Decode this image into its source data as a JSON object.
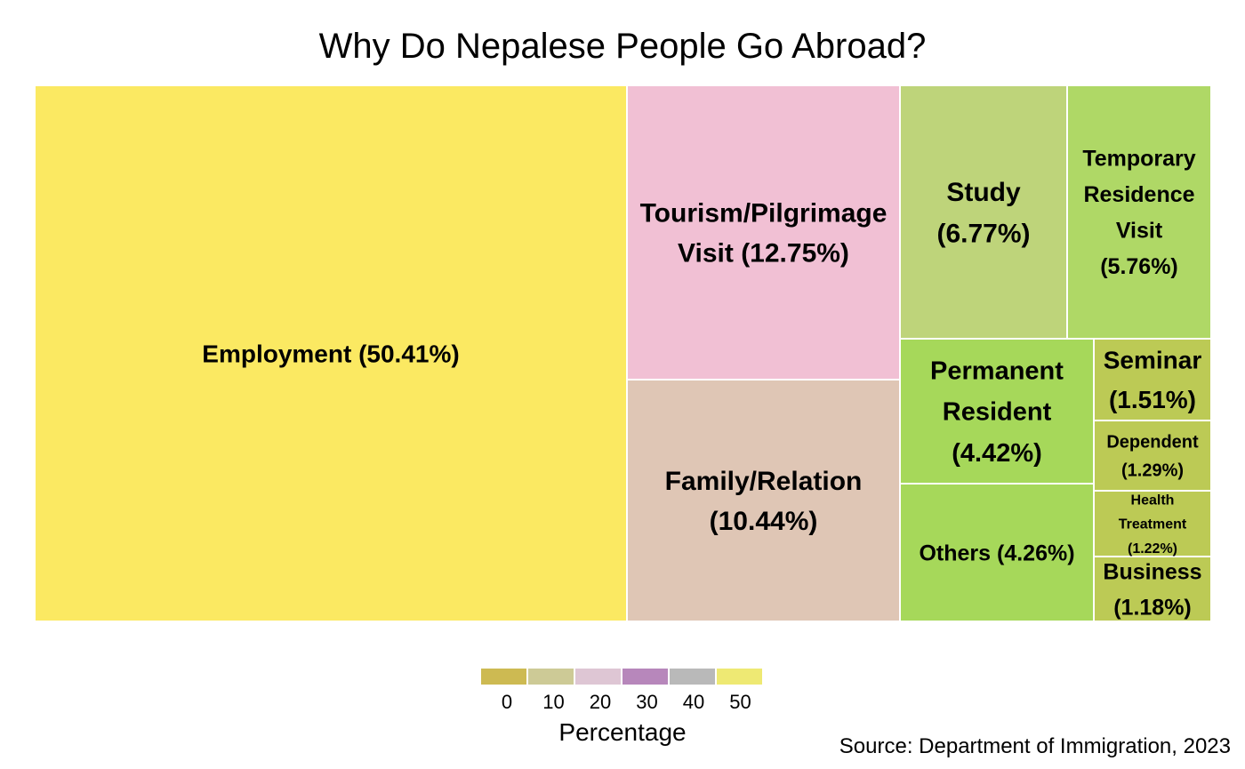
{
  "chart_data": {
    "type": "treemap",
    "title": "Why Do Nepalese People Go Abroad?",
    "tiles": [
      {
        "name": "Employment",
        "label": [
          "Employment (50.41%)"
        ],
        "value": 50.41,
        "color": "#FBE962"
      },
      {
        "name": "Tourism/Pilgrimage Visit",
        "label": [
          "Tourism/Pilgrimage",
          "Visit (12.75%)"
        ],
        "value": 12.75,
        "color": "#F1C0D4"
      },
      {
        "name": "Family/Relation",
        "label": [
          "Family/Relation",
          "(10.44%)"
        ],
        "value": 10.44,
        "color": "#DFC6B5"
      },
      {
        "name": "Study",
        "label": [
          "Study",
          "(6.77%)"
        ],
        "value": 6.77,
        "color": "#BED47A"
      },
      {
        "name": "Temporary Residence Visit",
        "label": [
          "Temporary",
          "Residence",
          "Visit",
          "(5.76%)"
        ],
        "value": 5.76,
        "color": "#AFD866"
      },
      {
        "name": "Permanent Resident",
        "label": [
          "Permanent",
          "Resident",
          "(4.42%)"
        ],
        "value": 4.42,
        "color": "#A6D85A"
      },
      {
        "name": "Others",
        "label": [
          "Others (4.26%)"
        ],
        "value": 4.26,
        "color": "#A6D85A"
      },
      {
        "name": "Seminar",
        "label": [
          "Seminar",
          "(1.51%)"
        ],
        "value": 1.51,
        "color": "#BCCA55"
      },
      {
        "name": "Dependent",
        "label": [
          "Dependent",
          "(1.29%)"
        ],
        "value": 1.29,
        "color": "#BCCA55"
      },
      {
        "name": "Health Treatment",
        "label": [
          "Health",
          "Treatment",
          "(1.22%)"
        ],
        "value": 1.22,
        "color": "#BCCA55"
      },
      {
        "name": "Business",
        "label": [
          "Business",
          "(1.18%)"
        ],
        "value": 1.18,
        "color": "#BCCA55"
      }
    ],
    "legend": {
      "title": "Percentage",
      "ticks": [
        "0",
        "10",
        "20",
        "30",
        "40",
        "50"
      ],
      "colors": [
        "#CDBA52",
        "#CDCA96",
        "#DEC6D4",
        "#B787BB",
        "#B9B9B9",
        "#EEE973"
      ]
    },
    "source": "Source: Department of Immigration, 2023"
  }
}
